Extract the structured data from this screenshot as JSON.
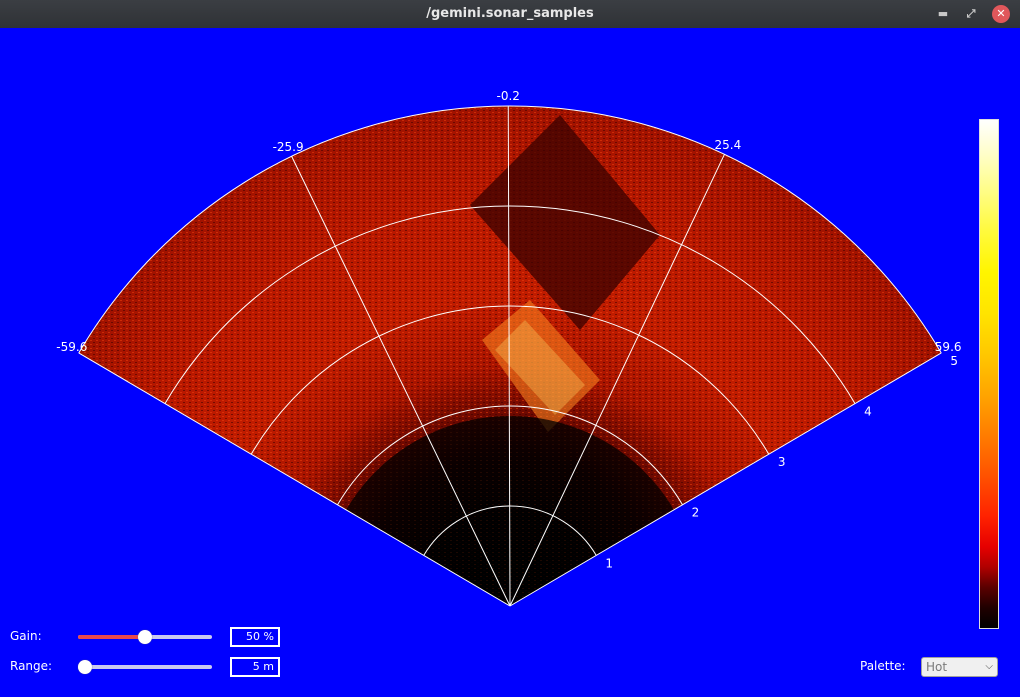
{
  "window": {
    "title": "/gemini.sonar_samples",
    "minimize_icon": "minimize-icon",
    "maximize_icon": "maximize-icon",
    "close_icon": "close-icon",
    "min_glyph": "▬",
    "max_glyph": "⤢",
    "close_glyph": "✕"
  },
  "sonar": {
    "bearing_labels": [
      "-59.6",
      "-25.9",
      "-0.2",
      "25.4",
      "59.6"
    ],
    "range_labels": [
      "1",
      "2",
      "3",
      "4",
      "5"
    ],
    "background_color": "#0000ff"
  },
  "controls": {
    "gain_label": "Gain:",
    "gain_value": "50 %",
    "gain_fraction": 0.5,
    "range_label": "Range:",
    "range_value": "5 m",
    "range_fraction": 0.0,
    "palette_label": "Palette:",
    "palette_selected": "Hot"
  },
  "colorbar": {
    "palette": "hot",
    "colors": [
      "#000000",
      "#e60000",
      "#ff7d00",
      "#ffe400",
      "#ffffff"
    ]
  }
}
